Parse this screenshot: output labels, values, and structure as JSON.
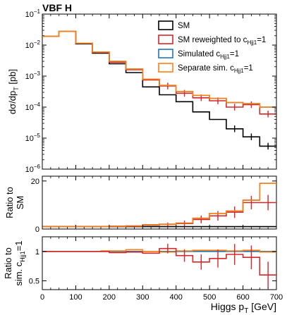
{
  "chart_data": {
    "type": "line",
    "title": "VBF H",
    "xlabel_main": "Higgs p",
    "xlabel_sub": "T",
    "xlabel_unit": " [GeV]",
    "x_ticks": [
      "0",
      "100",
      "200",
      "300",
      "400",
      "500",
      "600",
      "700"
    ],
    "xlim": [
      0,
      700
    ],
    "bin_edges": [
      0,
      25,
      50,
      75,
      100,
      125,
      150,
      175,
      200,
      225,
      250,
      275,
      300,
      325,
      350,
      375,
      400,
      425,
      450,
      475,
      500,
      525,
      550,
      575,
      600,
      625,
      650,
      675,
      700
    ],
    "colors": {
      "sm": "#000000",
      "reweighted": "#d62728",
      "simulated": "#1f77b4",
      "separate": "#ff7f0e"
    },
    "legend": {
      "placement": "top-right",
      "entries": [
        {
          "key": "sm",
          "text": "SM",
          "sub": ""
        },
        {
          "key": "reweighted",
          "text": "SM reweighted to c",
          "sub": "Hjj1",
          "suffix": "=1"
        },
        {
          "key": "simulated",
          "text": "Simulated c",
          "sub": "Hjj1",
          "suffix": "=1"
        },
        {
          "key": "separate",
          "text": "Separate sim. c",
          "sub": "Hjj1",
          "suffix": "=1"
        }
      ]
    },
    "panels": [
      {
        "id": "main",
        "scale": "log",
        "ylim": [
          1e-06,
          0.1
        ],
        "ylabel": "dσ/dp",
        "ylabel_sub": "T",
        "ylabel_unit": " [pb]",
        "y_ticks": [
          {
            "value": 0.1,
            "base": "10",
            "exp": "−1"
          },
          {
            "value": 0.01,
            "base": "10",
            "exp": "−2"
          },
          {
            "value": 0.001,
            "base": "10",
            "exp": "−3"
          },
          {
            "value": 0.0001,
            "base": "10",
            "exp": "−4"
          },
          {
            "value": 1e-05,
            "base": "10",
            "exp": "−5"
          },
          {
            "value": 1e-06,
            "base": "10",
            "exp": "−6"
          }
        ],
        "series": [
          {
            "key": "sm",
            "values": [
              0.019,
              0.019,
              0.028,
              0.028,
              0.011,
              0.011,
              0.0055,
              0.0055,
              0.0025,
              0.0025,
              0.0013,
              0.0013,
              0.00045,
              0.00045,
              0.00025,
              0.00025,
              0.00015,
              0.00015,
              7e-05,
              7e-05,
              4e-05,
              4e-05,
              2e-05,
              2e-05,
              1.1e-05,
              1.1e-05,
              5.5e-06,
              5.5e-06
            ],
            "errors_at": [
              22,
              23,
              24,
              25,
              26,
              27
            ]
          },
          {
            "key": "reweighted",
            "values": [
              0.019,
              0.019,
              0.028,
              0.028,
              0.0115,
              0.0115,
              0.0058,
              0.0058,
              0.0028,
              0.0028,
              0.0016,
              0.0016,
              0.00075,
              0.00075,
              0.00048,
              0.00048,
              0.00028,
              0.00028,
              0.0002,
              0.0002,
              0.00016,
              0.00016,
              0.0001,
              0.0001,
              0.00012,
              0.00012,
              6e-05,
              6e-05
            ],
            "errors_at": [
              14,
              15,
              16,
              17,
              18,
              19,
              20,
              21,
              22,
              23,
              24,
              25,
              26,
              27
            ]
          },
          {
            "key": "simulated",
            "values": [
              0.019,
              0.019,
              0.028,
              0.028,
              0.0115,
              0.0115,
              0.006,
              0.006,
              0.003,
              0.003,
              0.0017,
              0.0017,
              0.0008,
              0.0008,
              0.0005,
              0.0005,
              0.00032,
              0.00032,
              0.00024,
              0.00024,
              0.00019,
              0.00019,
              0.00014,
              0.00014,
              0.00013,
              0.00013,
              0.0001,
              0.0001
            ],
            "errors_at": []
          },
          {
            "key": "separate",
            "values": [
              0.019,
              0.019,
              0.028,
              0.028,
              0.0115,
              0.0115,
              0.006,
              0.006,
              0.003,
              0.003,
              0.0017,
              0.0017,
              0.0008,
              0.0008,
              0.0005,
              0.0005,
              0.00032,
              0.00032,
              0.00024,
              0.00024,
              0.00019,
              0.00019,
              0.00014,
              0.00014,
              0.00013,
              0.00013,
              0.0001,
              0.0001
            ],
            "errors_at": []
          }
        ]
      },
      {
        "id": "ratio_sm",
        "scale": "linear",
        "ylim": [
          0,
          22
        ],
        "ylabel": "Ratio to",
        "ylabel2": "SM",
        "y_ticks": [
          {
            "value": 0,
            "label": "0"
          },
          {
            "value": 20,
            "label": "20"
          }
        ],
        "series": [
          {
            "key": "sm",
            "values": [
              1,
              1,
              1,
              1,
              1,
              1,
              1,
              1,
              1,
              1,
              1,
              1,
              1,
              1,
              1,
              1,
              1,
              1,
              1,
              1,
              1,
              1,
              1,
              1,
              1,
              1,
              1,
              1
            ],
            "errors_at": []
          },
          {
            "key": "reweighted",
            "values": [
              1,
              1,
              1,
              1,
              1,
              1,
              1,
              1,
              1.1,
              1.1,
              1.2,
              1.2,
              1.6,
              1.6,
              1.9,
              1.9,
              2.3,
              2.3,
              4,
              4,
              5.5,
              5.5,
              7,
              7,
              11,
              11,
              11,
              11
            ],
            "errors_at": [
              14,
              15,
              16,
              17,
              18,
              19,
              20,
              21,
              22,
              23,
              24,
              25,
              26,
              27
            ]
          },
          {
            "key": "simulated",
            "values": [
              1,
              1,
              1,
              1,
              1,
              1,
              1,
              1,
              1.2,
              1.2,
              1.3,
              1.3,
              1.8,
              1.8,
              2,
              2,
              2.5,
              2.5,
              4.5,
              4.5,
              6.5,
              6.5,
              7.5,
              7.5,
              12,
              12,
              19,
              19
            ],
            "errors_at": []
          },
          {
            "key": "separate",
            "values": [
              1,
              1,
              1,
              1,
              1,
              1,
              1,
              1,
              1.2,
              1.2,
              1.3,
              1.3,
              1.8,
              1.8,
              2,
              2,
              2.5,
              2.5,
              4.5,
              4.5,
              6.5,
              6.5,
              7.5,
              7.5,
              12,
              12,
              19,
              19
            ],
            "errors_at": []
          }
        ]
      },
      {
        "id": "ratio_sim",
        "scale": "linear",
        "ylim": [
          0.35,
          1.25
        ],
        "ylabel": "Ratio to",
        "ylabel2_main": "sim. c",
        "ylabel2_sub": "Hjj1",
        "ylabel2_suffix": "=1",
        "y_ticks": [
          {
            "value": 0.5,
            "label": "0.5"
          },
          {
            "value": 1,
            "label": "1"
          }
        ],
        "series": [
          {
            "key": "simulated",
            "values": [
              1,
              1,
              1,
              1,
              1,
              1,
              1,
              1,
              1,
              1,
              1,
              1,
              1,
              1,
              1,
              1,
              1,
              1,
              1,
              1,
              1,
              1,
              1,
              1,
              1,
              1,
              1,
              1
            ],
            "errors_at": []
          },
          {
            "key": "separate",
            "values": [
              1,
              1,
              1,
              1,
              1,
              1,
              1,
              1.01,
              1.01,
              1.01,
              1.03,
              1.03,
              1.0,
              1.0,
              0.99,
              0.99,
              1.01,
              1.01,
              1.02,
              1.02,
              1.02,
              1.02,
              1.01,
              1.01,
              1.02,
              1.02,
              0.99,
              0.99
            ],
            "errors_at": []
          },
          {
            "key": "reweighted",
            "values": [
              1,
              1,
              1,
              1,
              1,
              1,
              1,
              1,
              0.98,
              0.98,
              0.99,
              0.99,
              0.97,
              0.97,
              1.05,
              1.05,
              0.93,
              0.93,
              0.82,
              0.82,
              0.88,
              0.88,
              0.95,
              0.95,
              0.9,
              0.9,
              0.6,
              0.6
            ],
            "errors_at": [
              14,
              15,
              16,
              17,
              18,
              19,
              20,
              21,
              22,
              23,
              24,
              25,
              26,
              27
            ]
          }
        ]
      }
    ]
  }
}
